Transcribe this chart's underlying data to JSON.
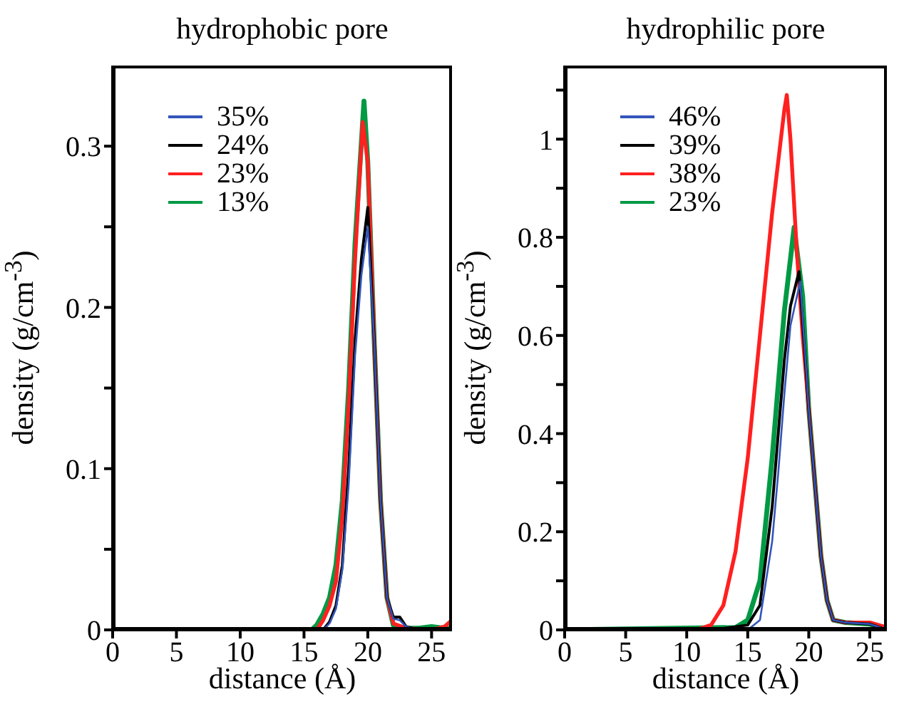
{
  "chart_data": [
    {
      "type": "line",
      "title": "hydrophobic pore",
      "xlabel": "distance (Å)",
      "ylabel": "density (g/cm$^{-3}$)",
      "xlim": [
        0,
        26.6
      ],
      "xticks": [
        0,
        5,
        10,
        15,
        20,
        25
      ],
      "ylim": [
        0,
        0.35
      ],
      "yticks": [
        0,
        {
          "value": 0.05,
          "label": null
        },
        0.1,
        {
          "value": 0.15,
          "label": null
        },
        0.2,
        {
          "value": 0.25,
          "label": null
        },
        0.3
      ],
      "legend": "top left",
      "grid": false,
      "series": [
        {
          "name": "35%",
          "color": "#3355bb",
          "x": [
            0,
            16.5,
            17,
            17.5,
            18,
            18.5,
            19,
            19.5,
            20,
            20.5,
            21,
            21.5,
            22,
            22.5,
            23,
            24
          ],
          "values": [
            0,
            0,
            0.004,
            0.013,
            0.037,
            0.09,
            0.17,
            0.22,
            0.25,
            0.18,
            0.08,
            0.02,
            0.007,
            0.006,
            0.002,
            0
          ]
        },
        {
          "name": "24%",
          "color": "#000000",
          "x": [
            0,
            16.5,
            17,
            17.5,
            18,
            18.5,
            19,
            19.5,
            20,
            20.5,
            21,
            21.5,
            22,
            22.5,
            23,
            24,
            26.6
          ],
          "values": [
            0,
            0,
            0.005,
            0.015,
            0.04,
            0.1,
            0.18,
            0.23,
            0.262,
            0.18,
            0.08,
            0.02,
            0.008,
            0.008,
            0.002,
            0,
            0
          ]
        },
        {
          "name": "23%",
          "color": "#ff2020",
          "x": [
            0,
            16,
            16.5,
            17,
            17.5,
            18,
            18.5,
            19,
            19.6,
            20,
            20.5,
            21,
            21.5,
            22,
            23,
            25,
            26,
            26.6
          ],
          "values": [
            0,
            0,
            0.006,
            0.015,
            0.03,
            0.07,
            0.14,
            0.23,
            0.315,
            0.29,
            0.18,
            0.08,
            0.02,
            0.004,
            0.001,
            0,
            0.002,
            0.006
          ]
        },
        {
          "name": "13%",
          "color": "#009944",
          "x": [
            0,
            15.6,
            16,
            16.5,
            17,
            17.5,
            18,
            18.5,
            19,
            19.7,
            20,
            20.5,
            21,
            21.5,
            22,
            23,
            24,
            25,
            26,
            26.6
          ],
          "values": [
            0,
            0,
            0.003,
            0.01,
            0.02,
            0.04,
            0.08,
            0.15,
            0.24,
            0.328,
            0.29,
            0.18,
            0.08,
            0.02,
            0.003,
            0.001,
            0.001,
            0.002,
            0.001,
            0.001
          ]
        }
      ]
    },
    {
      "type": "line",
      "title": "hydrophilic pore",
      "xlabel": "distance (Å)",
      "ylabel": "density (g/cm$^{-3}$)",
      "xlim": [
        0,
        26.4
      ],
      "xticks": [
        0,
        5,
        10,
        15,
        20,
        25
      ],
      "ylim": [
        0,
        1.15
      ],
      "yticks": [
        0,
        {
          "value": 0.1,
          "label": null
        },
        0.2,
        {
          "value": 0.3,
          "label": null
        },
        0.4,
        {
          "value": 0.5,
          "label": null
        },
        0.6,
        {
          "value": 0.7,
          "label": null
        },
        0.8,
        {
          "value": 0.9,
          "label": null
        },
        1,
        {
          "value": 1.1,
          "label": null
        }
      ],
      "legend": "top left",
      "grid": false,
      "series": [
        {
          "name": "46%",
          "color": "#3355bb",
          "x": [
            0,
            15,
            16,
            17,
            17.5,
            18,
            18.5,
            19.3,
            20,
            20.5,
            21,
            21.5,
            22,
            23,
            25,
            26.4
          ],
          "values": [
            0,
            0,
            0.02,
            0.18,
            0.32,
            0.48,
            0.62,
            0.71,
            0.45,
            0.3,
            0.15,
            0.06,
            0.02,
            0.015,
            0.012,
            0
          ]
        },
        {
          "name": "39%",
          "color": "#000000",
          "x": [
            0,
            13,
            15,
            16,
            17,
            17.5,
            18,
            18.5,
            19.2,
            20,
            20.5,
            21,
            21.5,
            22,
            23,
            25,
            26.4
          ],
          "values": [
            0,
            0.003,
            0.01,
            0.05,
            0.25,
            0.4,
            0.55,
            0.66,
            0.73,
            0.45,
            0.3,
            0.15,
            0.06,
            0.02,
            0.015,
            0.012,
            0
          ]
        },
        {
          "name": "38%",
          "color": "#ff2020",
          "x": [
            0,
            10.8,
            12,
            13,
            14,
            15,
            16,
            17,
            18,
            18.2,
            18.5,
            19,
            19.5,
            20,
            20.5,
            21,
            21.5,
            22,
            23,
            24,
            25,
            26.4
          ],
          "values": [
            0,
            0,
            0.01,
            0.05,
            0.16,
            0.35,
            0.6,
            0.85,
            1.06,
            1.09,
            1,
            0.78,
            0.6,
            0.45,
            0.3,
            0.15,
            0.06,
            0.02,
            0.015,
            0.015,
            0.015,
            0.005
          ]
        },
        {
          "name": "23%",
          "color": "#009944",
          "x": [
            0,
            14,
            15,
            16,
            17,
            17.5,
            18,
            18.8,
            19.5,
            20,
            20.5,
            21,
            21.5,
            22,
            23,
            25,
            26.4
          ],
          "values": [
            0,
            0.005,
            0.02,
            0.1,
            0.35,
            0.5,
            0.65,
            0.82,
            0.68,
            0.45,
            0.3,
            0.15,
            0.06,
            0.02,
            0.015,
            0.012,
            0
          ]
        }
      ]
    }
  ]
}
